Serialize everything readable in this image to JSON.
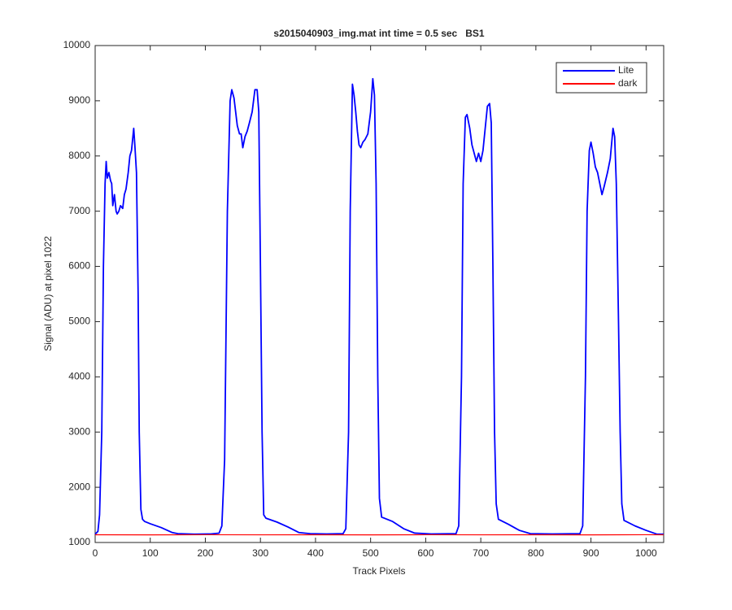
{
  "chart_data": {
    "type": "line",
    "title": "s2015040903_img.mat int time = 0.5 sec   BS1",
    "xlabel": "Track Pixels",
    "ylabel": "Signal (ADU) at pixel 1022",
    "xlim": [
      0,
      1032
    ],
    "ylim": [
      1000,
      10000
    ],
    "xticks": [
      0,
      100,
      200,
      300,
      400,
      500,
      600,
      700,
      800,
      900,
      1000
    ],
    "yticks": [
      1000,
      2000,
      3000,
      4000,
      5000,
      6000,
      7000,
      8000,
      9000,
      10000
    ],
    "grid": false,
    "legend": "northeast",
    "series": [
      {
        "name": "Lite",
        "color": "#0000ff",
        "x": [
          0,
          5,
          8,
          12,
          15,
          18,
          20,
          22,
          25,
          28,
          30,
          32,
          35,
          38,
          40,
          43,
          46,
          50,
          53,
          56,
          60,
          63,
          66,
          70,
          72,
          75,
          78,
          80,
          83,
          86,
          90,
          100,
          120,
          140,
          150,
          180,
          210,
          225,
          230,
          235,
          240,
          245,
          248,
          252,
          255,
          258,
          262,
          265,
          268,
          272,
          276,
          280,
          285,
          290,
          294,
          297,
          300,
          303,
          306,
          310,
          330,
          350,
          370,
          390,
          420,
          450,
          455,
          460,
          463,
          467,
          470,
          473,
          476,
          479,
          482,
          486,
          490,
          495,
          500,
          504,
          507,
          510,
          513,
          516,
          520,
          540,
          560,
          580,
          610,
          655,
          660,
          665,
          668,
          672,
          675,
          680,
          684,
          688,
          692,
          696,
          700,
          704,
          708,
          712,
          716,
          719,
          722,
          725,
          728,
          732,
          750,
          770,
          790,
          830,
          880,
          885,
          890,
          893,
          897,
          900,
          904,
          908,
          912,
          916,
          920,
          924,
          930,
          935,
          940,
          943,
          946,
          950,
          953,
          956,
          960,
          980,
          1000,
          1020,
          1032
        ],
        "values": [
          1150,
          1200,
          1500,
          3000,
          6000,
          7500,
          7900,
          7600,
          7700,
          7550,
          7500,
          7100,
          7300,
          7000,
          6950,
          7000,
          7100,
          7050,
          7300,
          7400,
          7700,
          8000,
          8100,
          8500,
          8200,
          7700,
          5500,
          3000,
          1600,
          1420,
          1380,
          1340,
          1270,
          1180,
          1160,
          1150,
          1155,
          1170,
          1300,
          2500,
          7000,
          9000,
          9200,
          9050,
          8800,
          8550,
          8400,
          8400,
          8150,
          8350,
          8450,
          8600,
          8800,
          9200,
          9200,
          8800,
          6000,
          3000,
          1500,
          1440,
          1370,
          1280,
          1180,
          1160,
          1155,
          1160,
          1250,
          3000,
          7000,
          9300,
          9100,
          8800,
          8450,
          8200,
          8150,
          8250,
          8300,
          8400,
          8800,
          9400,
          9100,
          7500,
          4000,
          1800,
          1460,
          1380,
          1250,
          1170,
          1155,
          1160,
          1300,
          4000,
          7500,
          8700,
          8750,
          8500,
          8200,
          8050,
          7900,
          8050,
          7900,
          8100,
          8500,
          8900,
          8950,
          8600,
          6000,
          3000,
          1700,
          1420,
          1330,
          1220,
          1160,
          1155,
          1160,
          1300,
          4000,
          7000,
          8100,
          8250,
          8050,
          7800,
          7700,
          7500,
          7300,
          7450,
          7700,
          7950,
          8500,
          8350,
          7500,
          5000,
          3000,
          1700,
          1400,
          1300,
          1220,
          1150,
          1150
        ]
      },
      {
        "name": "dark",
        "color": "#ff0000",
        "x": [
          0,
          100,
          200,
          300,
          400,
          500,
          600,
          700,
          800,
          900,
          1000,
          1032
        ],
        "values": [
          1140,
          1138,
          1141,
          1139,
          1140,
          1138,
          1141,
          1139,
          1140,
          1138,
          1141,
          1140
        ]
      }
    ]
  }
}
